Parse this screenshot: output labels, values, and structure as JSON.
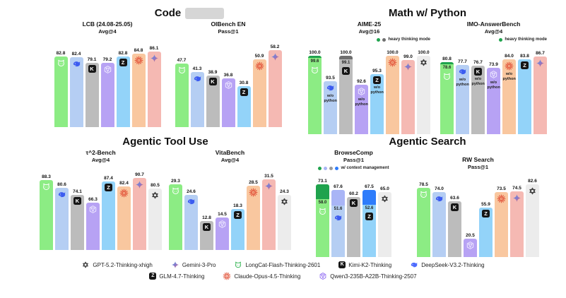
{
  "sections": [
    {
      "title": "Code"
    },
    {
      "title": "Math w/ Python"
    },
    {
      "title": "Agentic Tool Use"
    },
    {
      "title": "Agentic Search"
    }
  ],
  "models": {
    "gpt": {
      "name": "GPT-5.2-Thinking-xhigh",
      "color": "#ececec",
      "icon": "openai-icon"
    },
    "gemini": {
      "name": "Gemini-3-Pro",
      "color": "#f5b9b3",
      "icon": "gemini-icon"
    },
    "longcat": {
      "name": "LongCat-Flash-Thinking-2601",
      "color": "#8cec84",
      "cap_color": "#1fa34d",
      "icon": "longcat-icon"
    },
    "kimi": {
      "name": "Kimi-K2-Thinking",
      "color": "#bcbcbc",
      "cap_color": "#6f6f6f",
      "icon": "kimi-icon"
    },
    "deepseek": {
      "name": "DeepSeek-V3.2-Thinking",
      "color": "#b5cef3",
      "cap_color": "#a9b5f6",
      "icon": "deepseek-icon"
    },
    "glm": {
      "name": "GLM-4.7-Thinking",
      "color": "#93d3f9",
      "cap_color": "#2e7cfb",
      "icon": "glm-icon"
    },
    "claude": {
      "name": "Claude-Opus-4.5-Thinking",
      "color": "#f9c79f",
      "icon": "claude-icon"
    },
    "qwen": {
      "name": "Qwen3-235B-A22B-Thinking-2507",
      "color": "#b7a2f4",
      "icon": "qwen-icon"
    }
  },
  "chart_data": [
    {
      "type": "bar",
      "section": "Code",
      "title": "LCB (24.08-25.05)",
      "subtitle": "Avg@4",
      "ylim": [
        40,
        90
      ],
      "bars": [
        {
          "model": "longcat",
          "value": 82.8
        },
        {
          "model": "deepseek",
          "value": 82.4
        },
        {
          "model": "kimi",
          "value": 79.1
        },
        {
          "model": "qwen",
          "value": 79.2
        },
        {
          "model": "glm",
          "value": 82.8
        },
        {
          "model": "claude",
          "value": 84.8
        },
        {
          "model": "gemini",
          "value": 86.1
        }
      ]
    },
    {
      "type": "bar",
      "section": "Code",
      "title": "OIBench EN",
      "subtitle": "Pass@1",
      "ylim": [
        0,
        62
      ],
      "bars": [
        {
          "model": "longcat",
          "value": 47.7
        },
        {
          "model": "deepseek",
          "value": 41.3
        },
        {
          "model": "kimi",
          "value": 38.9
        },
        {
          "model": "qwen",
          "value": 36.8
        },
        {
          "model": "glm",
          "value": 30.8
        },
        {
          "model": "claude",
          "value": 50.9
        },
        {
          "model": "gemini",
          "value": 58.2
        }
      ]
    },
    {
      "type": "bar",
      "section": "Math w/ Python",
      "title": "AIME-25",
      "subtitle": "Avg@16",
      "ylim": [
        80,
        101
      ],
      "annotation": {
        "dots": [
          "#1fa34d",
          "#6f6f6f"
        ],
        "label": "heavy thinking mode",
        "align": "right"
      },
      "bars": [
        {
          "model": "longcat",
          "value": 100.0,
          "base": 99.6
        },
        {
          "model": "deepseek",
          "value": 93.5,
          "note": "w/o python"
        },
        {
          "model": "kimi",
          "value": 100.0,
          "base": 99.1
        },
        {
          "model": "qwen",
          "value": 92.6,
          "note": "w/o python"
        },
        {
          "model": "glm",
          "value": 95.3,
          "note": "w/o python"
        },
        {
          "model": "claude",
          "value": 100.0
        },
        {
          "model": "gemini",
          "value": 99.0
        },
        {
          "model": "gpt",
          "value": 100.0
        }
      ]
    },
    {
      "type": "bar",
      "section": "Math w/ Python",
      "title": "IMO-AnswerBench",
      "subtitle": "Avg@4",
      "ylim": [
        0,
        92
      ],
      "annotation": {
        "dots": [
          "#1fa34d"
        ],
        "label": "heavy thinking mode",
        "align": "right"
      },
      "bars": [
        {
          "model": "longcat",
          "value": 80.8,
          "base": 78.6
        },
        {
          "model": "deepseek",
          "value": 77.7,
          "note": "w/o python"
        },
        {
          "model": "kimi",
          "value": 76.7,
          "note": "w/o python"
        },
        {
          "model": "qwen",
          "value": 73.9,
          "note": "w/o python"
        },
        {
          "model": "claude",
          "value": 84.0,
          "note": "w/o python"
        },
        {
          "model": "glm",
          "value": 83.8
        },
        {
          "model": "gemini",
          "value": 86.7
        }
      ]
    },
    {
      "type": "bar",
      "section": "Agentic Tool Use",
      "title": "τ^2-Bench",
      "subtitle": "Avg@4",
      "ylim": [
        20,
        95
      ],
      "bars": [
        {
          "model": "longcat",
          "value": 88.3
        },
        {
          "model": "deepseek",
          "value": 80.6
        },
        {
          "model": "kimi",
          "value": 74.1
        },
        {
          "model": "qwen",
          "value": 66.3
        },
        {
          "model": "glm",
          "value": 87.4
        },
        {
          "model": "claude",
          "value": 82.4
        },
        {
          "model": "gemini",
          "value": 90.7
        },
        {
          "model": "gpt",
          "value": 80.5
        }
      ]
    },
    {
      "type": "bar",
      "section": "Agentic Tool Use",
      "title": "VitaBench",
      "subtitle": "Avg@4",
      "ylim": [
        0,
        34
      ],
      "bars": [
        {
          "model": "longcat",
          "value": 29.3
        },
        {
          "model": "deepseek",
          "value": 24.6
        },
        {
          "model": "kimi",
          "value": 12.8
        },
        {
          "model": "qwen",
          "value": 14.5
        },
        {
          "model": "glm",
          "value": 18.3
        },
        {
          "model": "claude",
          "value": 28.5
        },
        {
          "model": "gemini",
          "value": 31.5
        },
        {
          "model": "gpt",
          "value": 24.3
        }
      ]
    },
    {
      "type": "bar",
      "section": "Agentic Search",
      "title": "BrowseComp",
      "subtitle": "Pass@1",
      "ylim": [
        0,
        77
      ],
      "annotation": {
        "dots": [
          "#1fa34d",
          "#a9b5f6",
          "#9a9a9a",
          "#2e7cfb"
        ],
        "label": "w/ context management",
        "align": "center"
      },
      "bars": [
        {
          "model": "longcat",
          "value": 73.1,
          "base": 58.0
        },
        {
          "model": "deepseek",
          "value": 67.6,
          "base": 51.6
        },
        {
          "model": "kimi",
          "value": 60.2
        },
        {
          "model": "glm",
          "value": 67.5,
          "base": 52.6
        },
        {
          "model": "gpt",
          "value": 65.0
        }
      ]
    },
    {
      "type": "bar",
      "section": "Agentic Search",
      "title": "RW Search",
      "subtitle": "Pass@1",
      "ylim": [
        0,
        87
      ],
      "bars": [
        {
          "model": "longcat",
          "value": 78.5
        },
        {
          "model": "deepseek",
          "value": 74.0
        },
        {
          "model": "kimi",
          "value": 63.6
        },
        {
          "model": "qwen",
          "value": 20.5
        },
        {
          "model": "glm",
          "value": 55.9
        },
        {
          "model": "claude",
          "value": 73.5
        },
        {
          "model": "gemini",
          "value": 74.5
        },
        {
          "model": "gpt",
          "value": 82.6
        }
      ]
    }
  ],
  "legend": {
    "rows": [
      [
        "gpt",
        "gemini",
        "longcat",
        "kimi",
        "deepseek"
      ],
      [
        "glm",
        "claude",
        "qwen"
      ]
    ]
  }
}
